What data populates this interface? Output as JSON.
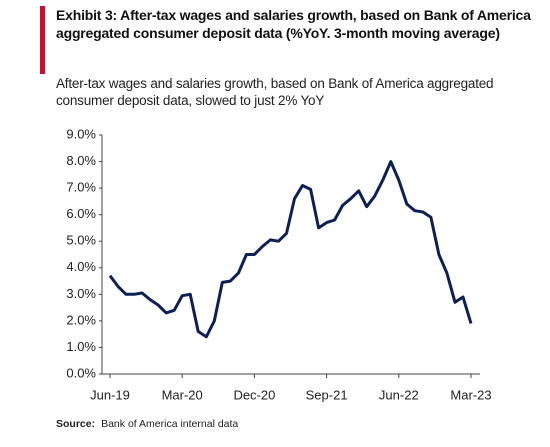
{
  "chart_data": {
    "type": "line",
    "title": "Exhibit 3: After-tax wages and salaries growth, based on Bank of America aggregated consumer deposit data (%YoY. 3-month moving average)",
    "subtitle": "After-tax wages and salaries growth, based on Bank of America aggregated consumer deposit data, slowed to just 2% YoY",
    "source_label": "Source:",
    "source": "Bank of America internal data",
    "categories": [
      "Jun-19",
      null,
      null,
      null,
      null,
      null,
      null,
      null,
      null,
      "Mar-20",
      null,
      null,
      null,
      null,
      null,
      null,
      null,
      null,
      "Dec-20",
      null,
      null,
      null,
      null,
      null,
      null,
      null,
      null,
      "Sep-21",
      null,
      null,
      null,
      null,
      null,
      null,
      null,
      null,
      "Jun-22",
      null,
      null,
      null,
      null,
      null,
      null,
      null,
      null,
      "Mar-23"
    ],
    "series": [
      {
        "name": "After-tax wages and salaries growth",
        "color": "#0c2055",
        "values": [
          3.7,
          3.3,
          3.0,
          3.0,
          3.05,
          2.8,
          2.6,
          2.3,
          2.4,
          2.95,
          3.0,
          1.6,
          1.4,
          2.0,
          3.45,
          3.5,
          3.8,
          4.5,
          4.5,
          4.8,
          5.05,
          5.0,
          5.3,
          6.6,
          7.1,
          6.95,
          5.5,
          5.7,
          5.8,
          6.35,
          6.6,
          6.9,
          6.3,
          6.7,
          7.3,
          8.0,
          7.3,
          6.4,
          6.15,
          6.1,
          5.9,
          4.5,
          3.8,
          2.7,
          2.9,
          1.9
        ]
      }
    ],
    "ylim": [
      0,
      9
    ],
    "yticks": [
      {
        "value": 0,
        "label": "0.0%"
      },
      {
        "value": 1,
        "label": "1.0%"
      },
      {
        "value": 2,
        "label": "2.0%"
      },
      {
        "value": 3,
        "label": "3.0%"
      },
      {
        "value": 4,
        "label": "4.0%"
      },
      {
        "value": 5,
        "label": "5.0%"
      },
      {
        "value": 6,
        "label": "6.0%"
      },
      {
        "value": 7,
        "label": "7.0%"
      },
      {
        "value": 8,
        "label": "8.0%"
      },
      {
        "value": 9,
        "label": "9.0%"
      }
    ]
  }
}
